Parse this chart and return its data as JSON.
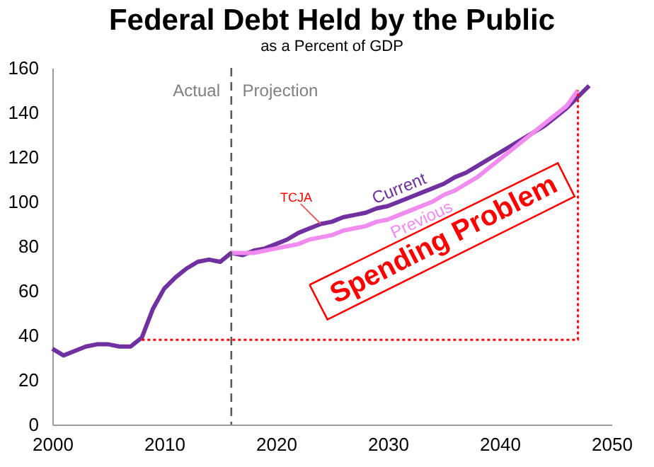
{
  "chart_data": {
    "type": "line",
    "title": "Federal Debt Held by the Public",
    "subtitle": "as a Percent of GDP",
    "xlim": [
      2000,
      2050
    ],
    "xticks": [
      2000,
      2010,
      2020,
      2030,
      2040,
      2050
    ],
    "ylim": [
      0,
      160
    ],
    "yticks": [
      0,
      20,
      40,
      60,
      80,
      100,
      120,
      140,
      160
    ],
    "grid": false,
    "legend": false,
    "marker": "none",
    "series": [
      {
        "name": "Current",
        "color": "#7030a0",
        "x": [
          2000,
          2001,
          2002,
          2003,
          2004,
          2005,
          2006,
          2007,
          2008,
          2009,
          2010,
          2011,
          2012,
          2013,
          2014,
          2015,
          2016,
          2017,
          2018,
          2019,
          2020,
          2021,
          2022,
          2023,
          2024,
          2025,
          2026,
          2027,
          2028,
          2029,
          2030,
          2031,
          2032,
          2033,
          2034,
          2035,
          2036,
          2037,
          2038,
          2039,
          2040,
          2041,
          2042,
          2043,
          2044,
          2045,
          2046,
          2047,
          2048
        ],
        "values": [
          34,
          31,
          33,
          35,
          36,
          36,
          35,
          35,
          39,
          52,
          61,
          66,
          70,
          73,
          74,
          73,
          77,
          76,
          78,
          79,
          81,
          83,
          86,
          88,
          90,
          91,
          93,
          94,
          95,
          97,
          98,
          100,
          102,
          104,
          106,
          108,
          111,
          113,
          116,
          119,
          122,
          125,
          128,
          131,
          134,
          138,
          142,
          147,
          152
        ]
      },
      {
        "name": "Previous",
        "color": "#f08cf0",
        "x": [
          2016,
          2017,
          2018,
          2019,
          2020,
          2021,
          2022,
          2023,
          2024,
          2025,
          2026,
          2027,
          2028,
          2029,
          2030,
          2031,
          2032,
          2033,
          2034,
          2035,
          2036,
          2037,
          2038,
          2039,
          2040,
          2041,
          2042,
          2043,
          2044,
          2045,
          2046,
          2047
        ],
        "values": [
          77,
          77,
          77,
          78,
          79,
          80,
          81,
          83,
          84,
          85,
          87,
          88,
          89,
          91,
          92,
          94,
          96,
          98,
          100,
          103,
          105,
          108,
          111,
          115,
          119,
          123,
          127,
          131,
          135,
          139,
          143,
          150
        ]
      },
      {
        "color": "#ff0000",
        "line_style": "dotted",
        "x": [
          2008,
          2047,
          2047
        ],
        "values": [
          38,
          38,
          150
        ]
      }
    ],
    "ref_lines": [
      {
        "axis": "x",
        "value": 2016,
        "color": "#595959",
        "line_style": "dashed"
      }
    ],
    "annotations": [
      "Actual",
      "Projection",
      {
        "text": "TCJA",
        "x": 2024,
        "y": 90
      },
      "Spending Problem"
    ]
  }
}
